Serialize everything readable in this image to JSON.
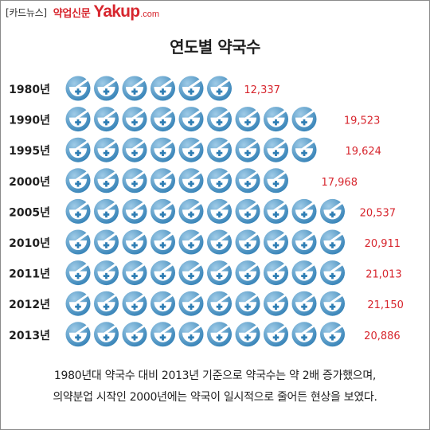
{
  "header": {
    "tag": "[카드뉴스]",
    "news_name": "약업신문",
    "brand": "Yakup",
    "brand_domain": ".com"
  },
  "chart_data": {
    "type": "bar",
    "title": "연도별 약국수",
    "icon": "pharmacy-mortar-icon",
    "categories": [
      "1980년",
      "1990년",
      "1995년",
      "2000년",
      "2005년",
      "2010년",
      "2011년",
      "2012년",
      "2013년"
    ],
    "values": [
      12337,
      19523,
      19624,
      17968,
      20537,
      20911,
      21013,
      21150,
      20886
    ],
    "value_labels": [
      "12,337",
      "19,523",
      "19,624",
      "17,968",
      "20,537",
      "20,911",
      "21,013",
      "21,150",
      "20,886"
    ],
    "units_per_icon": 2000
  },
  "caption": {
    "line1": "1980년대 약국수 대비 2013년 기준으로 약국수는 약 2배 증가했으며,",
    "line2": "의약분업 시작인 2000년에는 약국이 일시적으로 줄어든 현상을 보였다."
  },
  "colors": {
    "icon_blue": "#2f7eb4",
    "icon_light": "#9fcbe7",
    "value_red": "#d7262e",
    "text": "#1f1f1f"
  }
}
